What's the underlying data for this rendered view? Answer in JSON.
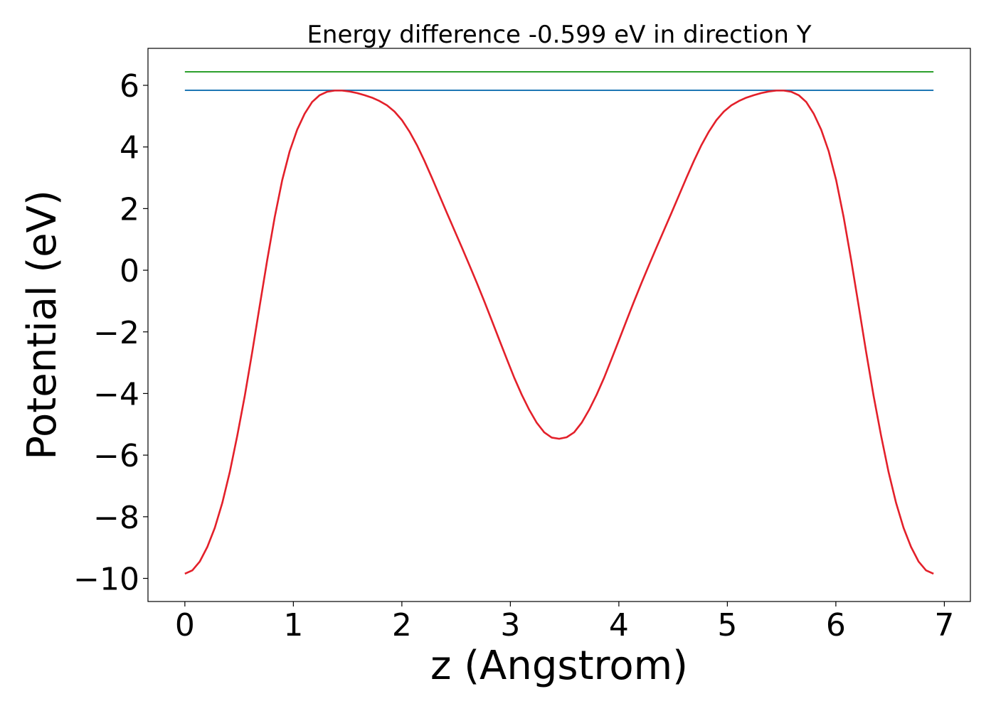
{
  "chart_data": {
    "type": "line",
    "title": "Energy difference -0.599 eV in direction Y",
    "xlabel": "z (Angstrom)",
    "ylabel": "Potential (eV)",
    "xlim": [
      -0.34,
      7.24
    ],
    "ylim": [
      -10.75,
      7.2
    ],
    "xticks": [
      0,
      1,
      2,
      3,
      4,
      5,
      6,
      7
    ],
    "xtick_labels": [
      "0",
      "1",
      "2",
      "3",
      "4",
      "5",
      "6",
      "7"
    ],
    "yticks": [
      -10,
      -8,
      -6,
      -4,
      -2,
      0,
      2,
      4,
      6
    ],
    "ytick_labels": [
      "−10",
      "−8",
      "−6",
      "−4",
      "−2",
      "0",
      "2",
      "4",
      "6"
    ],
    "grid": false,
    "series": [
      {
        "color": "#2ca02c",
        "x": [
          0,
          6.9
        ],
        "y": [
          6.44,
          6.44
        ]
      },
      {
        "color": "#1f77b4",
        "x": [
          0,
          6.9
        ],
        "y": [
          5.84,
          5.84
        ]
      },
      {
        "color": "#e3202a",
        "x": [
          0.0,
          0.069,
          0.138,
          0.207,
          0.276,
          0.345,
          0.414,
          0.483,
          0.552,
          0.621,
          0.69,
          0.759,
          0.828,
          0.897,
          0.966,
          1.035,
          1.104,
          1.173,
          1.242,
          1.311,
          1.38,
          1.449,
          1.518,
          1.587,
          1.656,
          1.725,
          1.794,
          1.863,
          1.932,
          2.001,
          2.07,
          2.139,
          2.208,
          2.277,
          2.346,
          2.415,
          2.484,
          2.553,
          2.622,
          2.691,
          2.76,
          2.829,
          2.898,
          2.967,
          3.036,
          3.105,
          3.174,
          3.243,
          3.312,
          3.381,
          3.45,
          3.519,
          3.588,
          3.657,
          3.726,
          3.795,
          3.864,
          3.933,
          4.002,
          4.071,
          4.14,
          4.209,
          4.278,
          4.347,
          4.416,
          4.485,
          4.554,
          4.623,
          4.692,
          4.761,
          4.83,
          4.899,
          4.968,
          5.037,
          5.106,
          5.175,
          5.244,
          5.313,
          5.382,
          5.451,
          5.52,
          5.589,
          5.658,
          5.727,
          5.796,
          5.865,
          5.934,
          6.003,
          6.072,
          6.141,
          6.21,
          6.279,
          6.348,
          6.417,
          6.486,
          6.555,
          6.624,
          6.693,
          6.762,
          6.831,
          6.9
        ],
        "y": [
          -9.85,
          -9.74,
          -9.45,
          -8.98,
          -8.36,
          -7.55,
          -6.55,
          -5.37,
          -4.08,
          -2.65,
          -1.15,
          0.33,
          1.72,
          2.92,
          3.86,
          4.56,
          5.08,
          5.46,
          5.68,
          5.79,
          5.83,
          5.83,
          5.8,
          5.75,
          5.68,
          5.6,
          5.49,
          5.35,
          5.15,
          4.87,
          4.5,
          4.06,
          3.55,
          3.0,
          2.43,
          1.86,
          1.3,
          0.74,
          0.17,
          -0.41,
          -1.01,
          -1.63,
          -2.26,
          -2.88,
          -3.49,
          -4.04,
          -4.53,
          -4.95,
          -5.26,
          -5.43,
          -5.47,
          -5.42,
          -5.26,
          -4.95,
          -4.53,
          -4.04,
          -3.49,
          -2.88,
          -2.26,
          -1.63,
          -1.01,
          -0.41,
          0.17,
          0.74,
          1.3,
          1.86,
          2.43,
          3.0,
          3.55,
          4.06,
          4.5,
          4.87,
          5.15,
          5.35,
          5.49,
          5.6,
          5.68,
          5.75,
          5.8,
          5.83,
          5.83,
          5.79,
          5.68,
          5.46,
          5.08,
          4.56,
          3.86,
          2.92,
          1.72,
          0.33,
          -1.15,
          -2.65,
          -4.08,
          -5.37,
          -6.55,
          -7.55,
          -8.36,
          -8.98,
          -9.45,
          -9.74,
          -9.85
        ]
      }
    ]
  }
}
